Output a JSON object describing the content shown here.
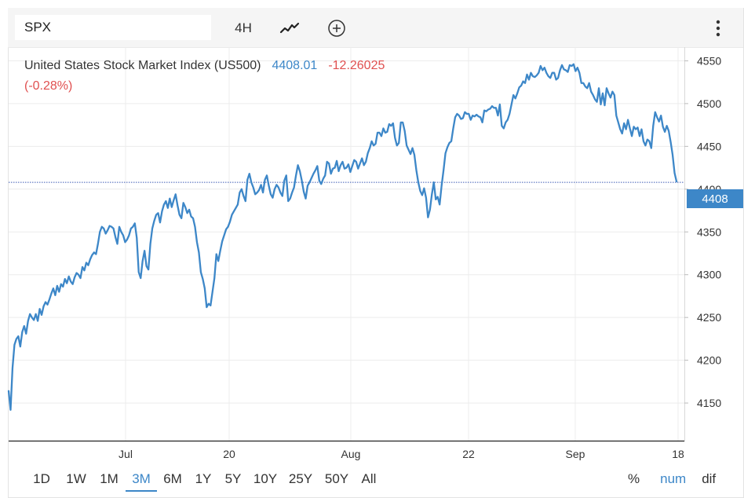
{
  "toolbar": {
    "symbol": "SPX",
    "interval": "4H",
    "chart_type_icon": "line-chart-icon",
    "add_icon": "plus-circle-icon",
    "menu_icon": "vertical-dots-icon"
  },
  "legend": {
    "name": "United States Stock Market Index (US500)",
    "price": "4408.01",
    "change": "-12.26025",
    "change_pct": "(-0.28%)"
  },
  "price_tag": "4408",
  "ranges": [
    {
      "label": "1D",
      "active": false
    },
    {
      "label": "1W",
      "active": false
    },
    {
      "label": "1M",
      "active": false
    },
    {
      "label": "3M",
      "active": true
    },
    {
      "label": "6M",
      "active": false
    },
    {
      "label": "1Y",
      "active": false
    },
    {
      "label": "5Y",
      "active": false
    },
    {
      "label": "10Y",
      "active": false
    },
    {
      "label": "25Y",
      "active": false
    },
    {
      "label": "50Y",
      "active": false
    },
    {
      "label": "All",
      "active": false
    }
  ],
  "modes": [
    {
      "label": "%",
      "active": false
    },
    {
      "label": "num",
      "active": true
    },
    {
      "label": "dif",
      "active": false
    }
  ],
  "colors": {
    "line": "#3d87c8",
    "negative": "#e05050",
    "grid": "#ececec"
  },
  "chart_data": {
    "type": "line",
    "x_ticks": [
      "Jul",
      "20",
      "Aug",
      "22",
      "Sep",
      "18"
    ],
    "y_ticks": [
      4150,
      4200,
      4250,
      4300,
      4350,
      4400,
      4450,
      4500,
      4550
    ],
    "ylim": [
      4106,
      4566
    ],
    "current_value": 4408,
    "series": [
      {
        "values": [
          4164,
          4142,
          4191,
          4218,
          4225,
          4228,
          4216,
          4233,
          4240,
          4231,
          4246,
          4254,
          4250,
          4247,
          4254,
          4246,
          4260,
          4253,
          4263,
          4268,
          4265,
          4271,
          4278,
          4284,
          4276,
          4287,
          4280,
          4289,
          4286,
          4295,
          4290,
          4298,
          4292,
          4289,
          4297,
          4302,
          4300,
          4296,
          4309,
          4305,
          4314,
          4311,
          4318,
          4323,
          4326,
          4324,
          4336,
          4350,
          4356,
          4354,
          4348,
          4352,
          4357,
          4356,
          4354,
          4344,
          4336,
          4356,
          4350,
          4346,
          4338,
          4341,
          4346,
          4354,
          4356,
          4360,
          4343,
          4303,
          4296,
          4316,
          4328,
          4310,
          4306,
          4336,
          4354,
          4363,
          4370,
          4372,
          4361,
          4374,
          4382,
          4386,
          4378,
          4389,
          4379,
          4387,
          4394,
          4381,
          4370,
          4366,
          4384,
          4379,
          4372,
          4376,
          4368,
          4366,
          4356,
          4338,
          4326,
          4303,
          4295,
          4284,
          4262,
          4266,
          4264,
          4280,
          4296,
          4324,
          4316,
          4328,
          4339,
          4346,
          4353,
          4356,
          4362,
          4370,
          4374,
          4378,
          4382,
          4396,
          4400,
          4392,
          4386,
          4411,
          4418,
          4408,
          4402,
          4394,
          4396,
          4399,
          4405,
          4396,
          4411,
          4416,
          4404,
          4394,
          4390,
          4400,
          4405,
          4402,
          4396,
          4392,
          4410,
          4416,
          4386,
          4389,
          4396,
          4402,
          4416,
          4428,
          4421,
          4410,
          4397,
          4389,
          4404,
          4408,
          4413,
          4418,
          4422,
          4427,
          4410,
          4406,
          4412,
          4416,
          4432,
          4430,
          4418,
          4424,
          4425,
          4433,
          4421,
          4428,
          4432,
          4424,
          4425,
          4429,
          4420,
          4427,
          4434,
          4432,
          4424,
          4430,
          4436,
          4428,
          4432,
          4442,
          4448,
          4456,
          4451,
          4453,
          4466,
          4466,
          4462,
          4471,
          4466,
          4467,
          4476,
          4474,
          4477,
          4460,
          4451,
          4454,
          4478,
          4478,
          4468,
          4451,
          4446,
          4441,
          4448,
          4440,
          4422,
          4408,
          4398,
          4393,
          4401,
          4390,
          4367,
          4376,
          4394,
          4408,
          4388,
          4391,
          4382,
          4404,
          4422,
          4442,
          4449,
          4454,
          4456,
          4471,
          4484,
          4488,
          4486,
          4482,
          4483,
          4490,
          4488,
          4488,
          4481,
          4486,
          4485,
          4487,
          4485,
          4484,
          4478,
          4492,
          4491,
          4493,
          4494,
          4497,
          4495,
          4495,
          4486,
          4499,
          4474,
          4471,
          4478,
          4481,
          4488,
          4499,
          4510,
          4506,
          4512,
          4519,
          4521,
          4526,
          4524,
          4534,
          4528,
          4536,
          4532,
          4531,
          4533,
          4536,
          4544,
          4539,
          4542,
          4536,
          4532,
          4530,
          4536,
          4536,
          4528,
          4530,
          4539,
          4545,
          4540,
          4539,
          4537,
          4545,
          4544,
          4546,
          4538,
          4542,
          4536,
          4524,
          4524,
          4520,
          4518,
          4524,
          4514,
          4510,
          4505,
          4502,
          4518,
          4499,
          4512,
          4498,
          4518,
          4512,
          4507,
          4514,
          4510,
          4486,
          4478,
          4470,
          4465,
          4477,
          4470,
          4481,
          4471,
          4462,
          4473,
          4470,
          4472,
          4462,
          4470,
          4456,
          4451,
          4458,
          4456,
          4448,
          4474,
          4490,
          4484,
          4479,
          4486,
          4473,
          4467,
          4474,
          4468,
          4455,
          4440,
          4419,
          4409
        ]
      }
    ]
  }
}
